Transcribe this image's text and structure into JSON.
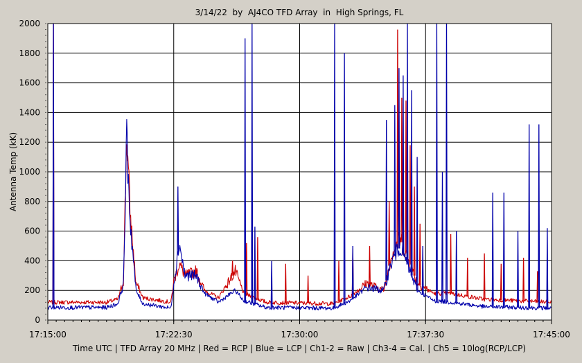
{
  "title": "3/14/22  by  AJ4CO TFD Array  in  High Springs, FL",
  "footer": "Time UTC | TFD Array 20 MHz | Red = RCP | Blue = LCP | Ch1-2 = Raw | Ch3-4 = Cal. | Ch5 = 10log(RCP/LCP)",
  "colors": {
    "background": "#d4d0c8",
    "plot_bg": "#ffffff",
    "rcp": "#cc0000",
    "lcp": "#0000aa",
    "grid": "#000000"
  },
  "chart_data": {
    "type": "line",
    "title": "3/14/22  by  AJ4CO TFD Array  in  High Springs, FL",
    "xlabel": "Time UTC | TFD Array 20 MHz | Red = RCP | Blue = LCP | Ch1-2 = Raw | Ch3-4 = Cal. | Ch5 = 10log(RCP/LCP)",
    "ylabel": "Antenna Temp (kK)",
    "ylim": [
      0,
      2000
    ],
    "xlim": [
      "17:15:00",
      "17:45:00"
    ],
    "x_ticks": [
      "17:15:00",
      "17:22:30",
      "17:30:00",
      "17:37:30",
      "17:45:00"
    ],
    "y_ticks": [
      0,
      200,
      400,
      600,
      800,
      1000,
      1200,
      1400,
      1600,
      1800,
      2000
    ],
    "grid": true,
    "series": [
      {
        "name": "RCP",
        "color": "#cc0000",
        "baseline": [
          [
            "17:15:00",
            120
          ],
          [
            "17:18:30",
            120
          ],
          [
            "17:19:10",
            140
          ],
          [
            "17:19:30",
            260
          ],
          [
            "17:19:42",
            1250
          ],
          [
            "17:19:55",
            700
          ],
          [
            "17:20:15",
            250
          ],
          [
            "17:20:40",
            150
          ],
          [
            "17:22:20",
            120
          ],
          [
            "17:22:30",
            260
          ],
          [
            "17:22:50",
            380
          ],
          [
            "17:23:10",
            300
          ],
          [
            "17:23:50",
            330
          ],
          [
            "17:24:20",
            200
          ],
          [
            "17:25:10",
            150
          ],
          [
            "17:26:10",
            330
          ],
          [
            "17:26:40",
            180
          ],
          [
            "17:28:00",
            120
          ],
          [
            "17:32:00",
            110
          ],
          [
            "17:33:00",
            160
          ],
          [
            "17:34:00",
            250
          ],
          [
            "17:35:00",
            200
          ],
          [
            "17:35:30",
            450
          ],
          [
            "17:36:00",
            550
          ],
          [
            "17:36:30",
            400
          ],
          [
            "17:37:00",
            250
          ],
          [
            "17:38:00",
            180
          ],
          [
            "17:39:00",
            180
          ],
          [
            "17:41:00",
            140
          ],
          [
            "17:43:00",
            130
          ],
          [
            "17:45:00",
            120
          ]
        ],
        "spikes": [
          [
            "17:15:20",
            2000
          ],
          [
            "17:26:00",
            400
          ],
          [
            "17:26:50",
            520
          ],
          [
            "17:27:30",
            560
          ],
          [
            "17:29:10",
            380
          ],
          [
            "17:30:30",
            300
          ],
          [
            "17:32:20",
            400
          ],
          [
            "17:33:10",
            480
          ],
          [
            "17:34:10",
            500
          ],
          [
            "17:35:20",
            800
          ],
          [
            "17:35:50",
            1960
          ],
          [
            "17:36:05",
            1500
          ],
          [
            "17:36:20",
            1480
          ],
          [
            "17:36:35",
            1180
          ],
          [
            "17:36:50",
            900
          ],
          [
            "17:37:10",
            650
          ],
          [
            "17:39:00",
            580
          ],
          [
            "17:40:00",
            420
          ],
          [
            "17:41:00",
            450
          ],
          [
            "17:42:00",
            380
          ],
          [
            "17:43:20",
            420
          ],
          [
            "17:44:10",
            330
          ]
        ]
      },
      {
        "name": "LCP",
        "color": "#0000aa",
        "baseline": [
          [
            "17:15:00",
            85
          ],
          [
            "17:18:30",
            85
          ],
          [
            "17:19:10",
            110
          ],
          [
            "17:19:30",
            240
          ],
          [
            "17:19:42",
            1220
          ],
          [
            "17:19:55",
            650
          ],
          [
            "17:20:15",
            200
          ],
          [
            "17:20:40",
            110
          ],
          [
            "17:22:20",
            80
          ],
          [
            "17:22:30",
            240
          ],
          [
            "17:22:50",
            520
          ],
          [
            "17:23:10",
            300
          ],
          [
            "17:23:50",
            300
          ],
          [
            "17:24:20",
            180
          ],
          [
            "17:25:10",
            120
          ],
          [
            "17:26:10",
            200
          ],
          [
            "17:26:40",
            130
          ],
          [
            "17:28:00",
            85
          ],
          [
            "17:32:00",
            80
          ],
          [
            "17:33:00",
            130
          ],
          [
            "17:34:00",
            220
          ],
          [
            "17:35:00",
            200
          ],
          [
            "17:35:30",
            400
          ],
          [
            "17:36:00",
            500
          ],
          [
            "17:36:30",
            350
          ],
          [
            "17:37:00",
            200
          ],
          [
            "17:38:00",
            130
          ],
          [
            "17:39:00",
            120
          ],
          [
            "17:41:00",
            90
          ],
          [
            "17:43:00",
            85
          ],
          [
            "17:45:00",
            80
          ]
        ],
        "spikes": [
          [
            "17:15:20",
            2000
          ],
          [
            "17:22:45",
            900
          ],
          [
            "17:26:45",
            1900
          ],
          [
            "17:27:10",
            2000
          ],
          [
            "17:27:20",
            630
          ],
          [
            "17:28:20",
            400
          ],
          [
            "17:32:05",
            2000
          ],
          [
            "17:32:40",
            1800
          ],
          [
            "17:33:10",
            500
          ],
          [
            "17:35:10",
            1350
          ],
          [
            "17:35:40",
            1450
          ],
          [
            "17:35:55",
            1700
          ],
          [
            "17:36:10",
            1650
          ],
          [
            "17:36:25",
            2000
          ],
          [
            "17:36:40",
            1550
          ],
          [
            "17:37:00",
            1100
          ],
          [
            "17:37:20",
            500
          ],
          [
            "17:38:10",
            2000
          ],
          [
            "17:38:30",
            1000
          ],
          [
            "17:38:45",
            2000
          ],
          [
            "17:39:20",
            600
          ],
          [
            "17:41:30",
            860
          ],
          [
            "17:42:10",
            860
          ],
          [
            "17:43:00",
            600
          ],
          [
            "17:43:40",
            1320
          ],
          [
            "17:44:15",
            1320
          ],
          [
            "17:44:45",
            620
          ]
        ]
      }
    ]
  }
}
